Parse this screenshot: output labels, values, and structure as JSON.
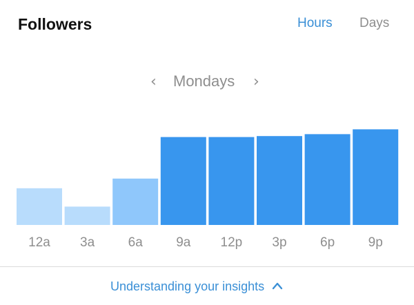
{
  "header": {
    "title": "Followers",
    "tabs": [
      {
        "label": "Hours",
        "active": true
      },
      {
        "label": "Days",
        "active": false
      }
    ]
  },
  "day_nav": {
    "label": "Mondays",
    "prev_icon": "chevron-left-icon",
    "next_icon": "chevron-right-icon"
  },
  "chart_data": {
    "type": "bar",
    "title": "",
    "xlabel": "",
    "ylabel": "",
    "categories": [
      "12a",
      "3a",
      "6a",
      "9a",
      "12p",
      "3p",
      "6p",
      "9p"
    ],
    "values": [
      38,
      19,
      48,
      91,
      91,
      92,
      94,
      99
    ],
    "ylim": [
      0,
      100
    ],
    "grid": false,
    "colors": {
      "light": "#b8dcfc",
      "medium": "#8fc7fb",
      "dark": "#3896ee"
    },
    "bar_tones": [
      "light",
      "light",
      "medium",
      "dark",
      "dark",
      "dark",
      "dark",
      "dark"
    ]
  },
  "footer": {
    "link_label": "Understanding your insights",
    "link_icon": "chevron-up-icon"
  },
  "colors": {
    "accent": "#3a8fd6",
    "muted": "#8e8e8e"
  }
}
